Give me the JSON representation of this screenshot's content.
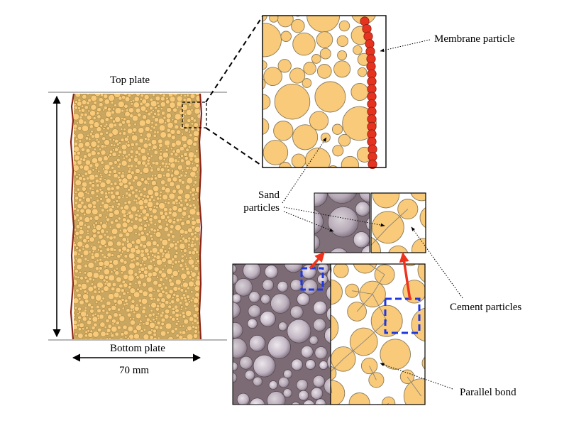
{
  "labels": {
    "top_plate": "Top plate",
    "bottom_plate": "Bottom plate",
    "width": "70 mm",
    "membrane_particle": "Membrane particle",
    "sand_particles": "Sand\nparticles",
    "cement_particles": "Cement particles",
    "parallel_bond": "Parallel bond"
  },
  "colors": {
    "sand": "#f8ca7a",
    "sand_outline": "#8a7a5a",
    "membrane": "#e53320",
    "membrane_edge": "#8a1d12",
    "arrow_red": "#f0321c",
    "dashed_box_blue": "#1f37e0",
    "bond_line": "#7d7d7d",
    "photo_base": "#9a8a92"
  },
  "icons": {
    "specimen": "specimen-particle-assembly",
    "zoom": "zoom-inset-dem",
    "sem": "sem-micrograph-photo"
  }
}
